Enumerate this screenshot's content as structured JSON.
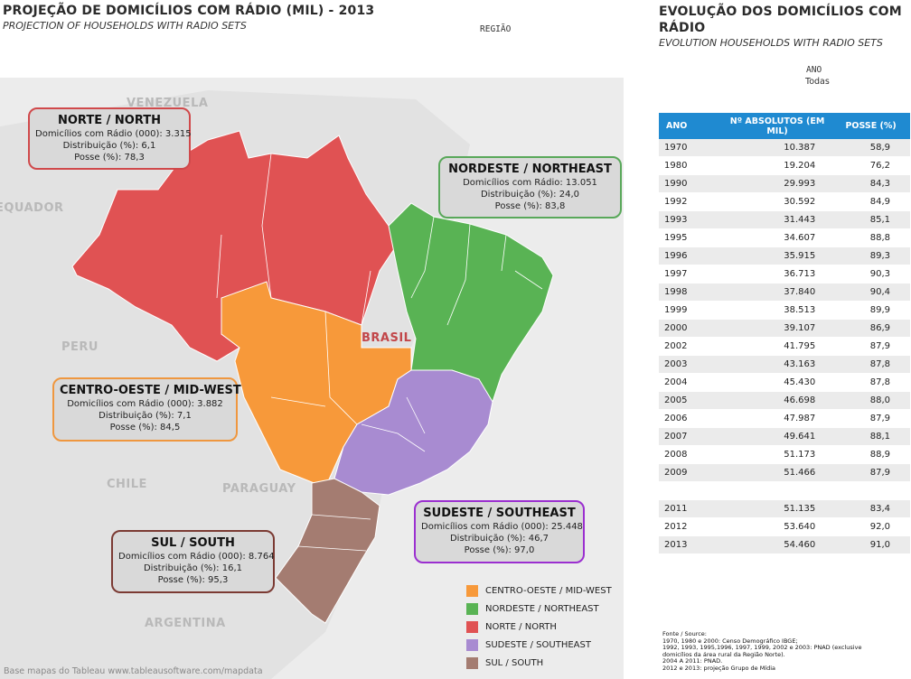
{
  "header": {
    "title": "PROJEÇÃO DE DOMICÍLIOS COM RÁDIO (MIL) - 2013",
    "subtitle": "PROJECTION OF HOUSEHOLDS WITH RADIO SETS",
    "region_filter_label": "REGIÃO"
  },
  "right_header": {
    "title": "EVOLUÇÃO DOS DOMICÍLIOS COM RÁDIO",
    "subtitle": "EVOLUTION HOUSEHOLDS WITH RADIO SETS",
    "year_filter_label": "ANO",
    "year_filter_value": "Todas"
  },
  "map": {
    "countries": [
      "VENEZUELA",
      "EQUADOR",
      "PERU",
      "CHILE",
      "PARAGUAY",
      "ARGENTINA",
      "BRASIL"
    ],
    "watermark": "Base mapas do Tableau www.tableausoftware.com/mapdata"
  },
  "colors": {
    "norte": "#e05253",
    "nordeste": "#59b354",
    "centro_oeste": "#f7993a",
    "sudeste": "#a88bd1",
    "sul": "#a47c71",
    "table_header": "#1f8ad1"
  },
  "regions": {
    "norte": {
      "title": "NORTE / NORTH",
      "line1": "Domicílios com Rádio (000): 3.315",
      "line2": "Distribuição (%): 6,1",
      "line3": "Posse (%): 78,3",
      "border": "#d0494b"
    },
    "nordeste": {
      "title": "NORDESTE / NORTHEAST",
      "line1": "Domicílios com Rádio: 13.051",
      "line2": "Distribuição (%): 24,0",
      "line3": "Posse (%): 83,8",
      "border": "#59a85a"
    },
    "centro_oeste": {
      "title": "CENTRO-OESTE / MID-WEST",
      "line1": "Domicílios com Rádio (000): 3.882",
      "line2": "Distribuição (%): 7,1",
      "line3": "Posse (%): 84,5",
      "border": "#ef973f"
    },
    "sudeste": {
      "title": "SUDESTE / SOUTHEAST",
      "line1": "Domicílios com Rádio (000): 25.448",
      "line2": "Distribuição (%): 46,7",
      "line3": "Posse (%): 97,0",
      "border": "#9b2fd0"
    },
    "sul": {
      "title": "SUL / SOUTH",
      "line1": "Domicílios com Rádio (000): 8.764",
      "line2": "Distribuição (%): 16,1",
      "line3": "Posse (%): 95,3",
      "border": "#7b3a33"
    }
  },
  "legend": [
    {
      "label": "CENTRO-OESTE / MID-WEST",
      "color": "#f7993a"
    },
    {
      "label": "NORDESTE / NORTHEAST",
      "color": "#59b354"
    },
    {
      "label": "NORTE / NORTH",
      "color": "#e05253"
    },
    {
      "label": "SUDESTE / SOUTHEAST",
      "color": "#a88bd1"
    },
    {
      "label": "SUL / SOUTH",
      "color": "#a47c71"
    }
  ],
  "table": {
    "headers": [
      "ANO",
      "Nº ABSOLUTOS (EM MIL)",
      "POSSE (%)"
    ],
    "rows": [
      [
        "1970",
        "10.387",
        "58,9"
      ],
      [
        "1980",
        "19.204",
        "76,2"
      ],
      [
        "1990",
        "29.993",
        "84,3"
      ],
      [
        "1992",
        "30.592",
        "84,9"
      ],
      [
        "1993",
        "31.443",
        "85,1"
      ],
      [
        "1995",
        "34.607",
        "88,8"
      ],
      [
        "1996",
        "35.915",
        "89,3"
      ],
      [
        "1997",
        "36.713",
        "90,3"
      ],
      [
        "1998",
        "37.840",
        "90,4"
      ],
      [
        "1999",
        "38.513",
        "89,9"
      ],
      [
        "2000",
        "39.107",
        "86,9"
      ],
      [
        "2002",
        "41.795",
        "87,9"
      ],
      [
        "2003",
        "43.163",
        "87,8"
      ],
      [
        "2004",
        "45.430",
        "87,8"
      ],
      [
        "2005",
        "46.698",
        "88,0"
      ],
      [
        "2006",
        "47.987",
        "87,9"
      ],
      [
        "2007",
        "49.641",
        "88,1"
      ],
      [
        "2008",
        "51.173",
        "88,9"
      ],
      [
        "2009",
        "51.466",
        "87,9"
      ],
      [
        "",
        "",
        ""
      ],
      [
        "2011",
        "51.135",
        "83,4"
      ],
      [
        "2012",
        "53.640",
        "92,0"
      ],
      [
        "2013",
        "54.460",
        "91,0"
      ]
    ]
  },
  "source": {
    "line1": "Fonte / Source:",
    "line2": "1970, 1980 e 2000: Censo Demográfico IBGE;",
    "line3": "1992, 1993, 1995,1996, 1997, 1999, 2002 e 2003: PNAD (exclusive",
    "line4": "domicílios da área rural da Região Norte).",
    "line5": "2004 A 2011: PNAD.",
    "line6": "2012 e 2013: projeção Grupo de Mídia"
  }
}
